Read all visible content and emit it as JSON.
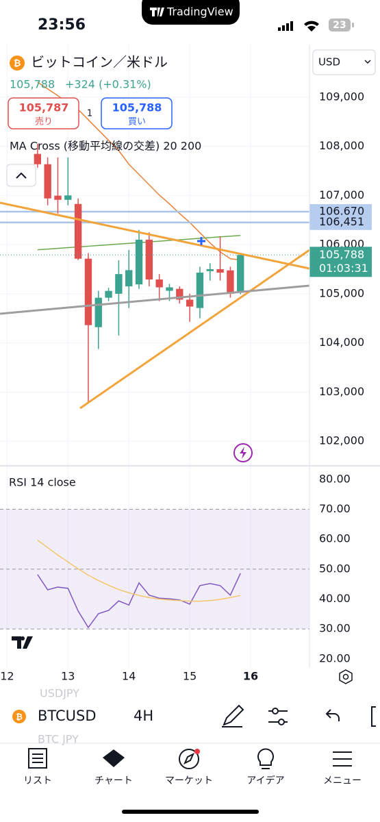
{
  "status_bar": {
    "time": "23:56",
    "app": "TradingView",
    "battery": "23"
  },
  "header": {
    "symbol_name": "ビットコイン／米ドル",
    "price": "105,788",
    "change": "+324 (+0.31%)",
    "sell": {
      "price": "105,787",
      "label": "売り"
    },
    "spread": "1",
    "buy": {
      "price": "105,788",
      "label": "買い"
    },
    "currency": "USD",
    "indicator": "MA Cross (移動平均線の交差) 20 200"
  },
  "chart_data": [
    {
      "type": "candlestick",
      "grid": true,
      "up_color": "#3ba38f",
      "down_color": "#e0504f",
      "x": [
        0,
        1,
        2,
        3,
        4,
        5,
        6,
        7,
        8,
        9,
        10,
        11,
        12,
        13,
        14,
        15,
        16,
        17,
        18,
        19,
        20
      ],
      "open": [
        107844,
        107635,
        106995,
        106911,
        106827,
        105713,
        104320,
        104919,
        105000,
        105150,
        105190,
        106100,
        105290,
        105060,
        105100,
        104880,
        104710,
        105460,
        105500,
        105475,
        105020
      ],
      "high": [
        108053,
        107774,
        107774,
        107774,
        106939,
        105825,
        105058,
        105120,
        105680,
        105890,
        106300,
        106250,
        105400,
        105200,
        105150,
        105000,
        105550,
        105620,
        106170,
        105550,
        105800
      ],
      "low": [
        107565,
        106800,
        106632,
        106800,
        105685,
        102788,
        103875,
        104850,
        104150,
        104710,
        105100,
        105150,
        104850,
        104850,
        104800,
        104430,
        104500,
        105270,
        105270,
        104920,
        104990
      ],
      "close": [
        107635,
        106939,
        106911,
        107000,
        105713,
        104362,
        104919,
        105058,
        105400,
        105480,
        106100,
        105290,
        105130,
        105130,
        104880,
        104740,
        105430,
        105500,
        105430,
        105000,
        105788
      ],
      "ma_lines": [
        {
          "color": "#e8813a",
          "values": [
            109306,
            109167,
            109028,
            108889,
            108749,
            108540,
            108331,
            108122,
            107913,
            107635,
            107426,
            107217,
            107008,
            106827,
            106632,
            106451,
            106242,
            106033,
            105852,
            105713,
            105685
          ]
        },
        {
          "color": "#6aa84f",
          "values": [
            105894,
            105909,
            105923,
            105938,
            105952,
            105967,
            105982,
            105996,
            106011,
            106025,
            106040,
            106055,
            106069,
            106084,
            106098,
            106113,
            106128,
            106142,
            106157,
            106171,
            106186
          ]
        }
      ],
      "xlim": [
        -3.7,
        26.8
      ],
      "xticks": [
        {
          "value": -3,
          "label": "12"
        },
        {
          "value": 3,
          "label": "13"
        },
        {
          "value": 9,
          "label": "14"
        },
        {
          "value": 15,
          "label": "15"
        },
        {
          "value": 21,
          "label": "16"
        }
      ],
      "ylim": [
        101500,
        110070
      ],
      "yticks": [
        {
          "value": 102000,
          "label": "102,000"
        },
        {
          "value": 103000,
          "label": "103,000"
        },
        {
          "value": 104000,
          "label": "104,000"
        },
        {
          "value": 105000,
          "label": "105,000"
        },
        {
          "value": 106000,
          "label": "106,000"
        },
        {
          "value": 107000,
          "label": "107,000"
        },
        {
          "value": 108000,
          "label": "108,000"
        },
        {
          "value": 109000,
          "label": "109,000"
        }
      ],
      "price_lines": [
        {
          "value": 106670,
          "label": "106,670"
        },
        {
          "value": 106451,
          "label": "106,451"
        }
      ],
      "last": {
        "value": 105788,
        "label": "105,788",
        "countdown": "01:03:31"
      }
    },
    {
      "type": "line",
      "title": "RSI 14 close",
      "band": [
        30,
        70
      ],
      "levels": [
        30,
        50,
        70
      ],
      "x": [
        0,
        1,
        2,
        3,
        4,
        5,
        6,
        7,
        8,
        9,
        10,
        11,
        12,
        13,
        14,
        15,
        16,
        17,
        18,
        19,
        20
      ],
      "series": [
        {
          "color": "#7e57c2",
          "values": [
            48.2,
            43.1,
            44.0,
            43.6,
            36.0,
            30.5,
            35.1,
            36.2,
            39.4,
            38.0,
            45.4,
            41.3,
            40.3,
            40.1,
            39.7,
            38.3,
            44.5,
            45.2,
            44.5,
            41.3,
            48.6
          ]
        },
        {
          "color": "#f5c56a",
          "values": [
            59.7,
            57.2,
            54.7,
            52.4,
            50.1,
            48.0,
            46.2,
            44.6,
            43.2,
            42.1,
            41.2,
            40.5,
            40.0,
            39.7,
            39.5,
            39.3,
            39.3,
            39.5,
            39.9,
            40.5,
            41.2
          ]
        }
      ],
      "ylim": [
        18.6,
        83.4
      ],
      "yticks": [
        {
          "value": 20,
          "label": "20.00"
        },
        {
          "value": 30,
          "label": "30.00"
        },
        {
          "value": 40,
          "label": "40.00"
        },
        {
          "value": 50,
          "label": "50.00"
        },
        {
          "value": 60,
          "label": "60.00"
        },
        {
          "value": 70,
          "label": "70.00"
        },
        {
          "value": 80,
          "label": "80.00"
        }
      ]
    }
  ],
  "toolbar": {
    "faded_above": "USDJPY",
    "symbol": "BTCUSD",
    "interval": "4H",
    "faded_below": "BTC JPY"
  },
  "nav": [
    "リスト",
    "チャート",
    "マーケット",
    "アイデア",
    "メニュー"
  ]
}
